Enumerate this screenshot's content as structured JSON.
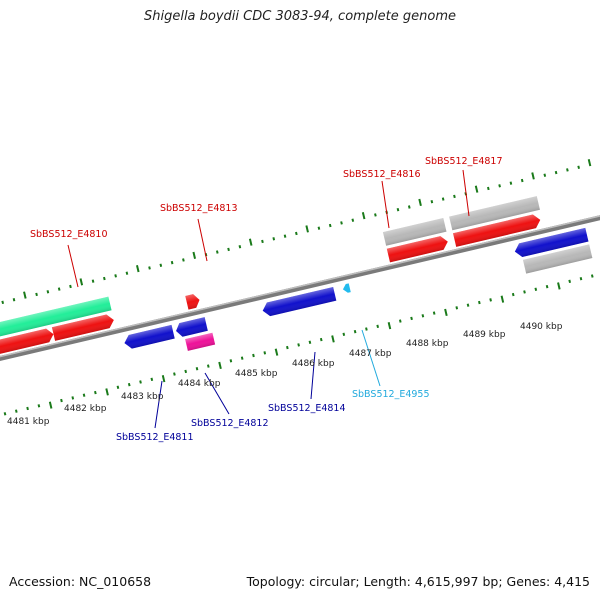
{
  "title": "Shigella boydii CDC 3083-94, complete genome",
  "footer": {
    "accession": "Accession: NC_010658",
    "stats": "Topology: circular; Length: 4,615,997 bp; Genes: 4,415"
  },
  "colors": {
    "backbone": "#7a7a7a",
    "tick": "#1a7a1a",
    "red": "#ee1111",
    "blue": "#1111cc",
    "grey": "#b8b8b8",
    "teal": "#22ee99",
    "magenta": "#ee1199",
    "cyan": "#22bbee",
    "label_red": "#cc0000",
    "label_blue": "#000099",
    "label_cyan": "#22aadd"
  },
  "kbp_labels": [
    {
      "text": "4481 kbp"
    },
    {
      "text": "4482 kbp"
    },
    {
      "text": "4483 kbp"
    },
    {
      "text": "4484 kbp"
    },
    {
      "text": "4485 kbp"
    },
    {
      "text": "4486 kbp"
    },
    {
      "text": "4487 kbp"
    },
    {
      "text": "4488 kbp"
    },
    {
      "text": "4489 kbp"
    },
    {
      "text": "4490 kbp"
    }
  ],
  "gene_labels": [
    {
      "text": "SbBS512_E4810",
      "color": "label_red"
    },
    {
      "text": "SbBS512_E4813",
      "color": "label_red"
    },
    {
      "text": "SbBS512_E4816",
      "color": "label_red"
    },
    {
      "text": "SbBS512_E4817",
      "color": "label_red"
    },
    {
      "text": "SbBS512_E4811",
      "color": "label_blue"
    },
    {
      "text": "SbBS512_E4812",
      "color": "label_blue"
    },
    {
      "text": "SbBS512_E4814",
      "color": "label_blue"
    },
    {
      "text": "SbBS512_E4955",
      "color": "label_cyan"
    }
  ]
}
